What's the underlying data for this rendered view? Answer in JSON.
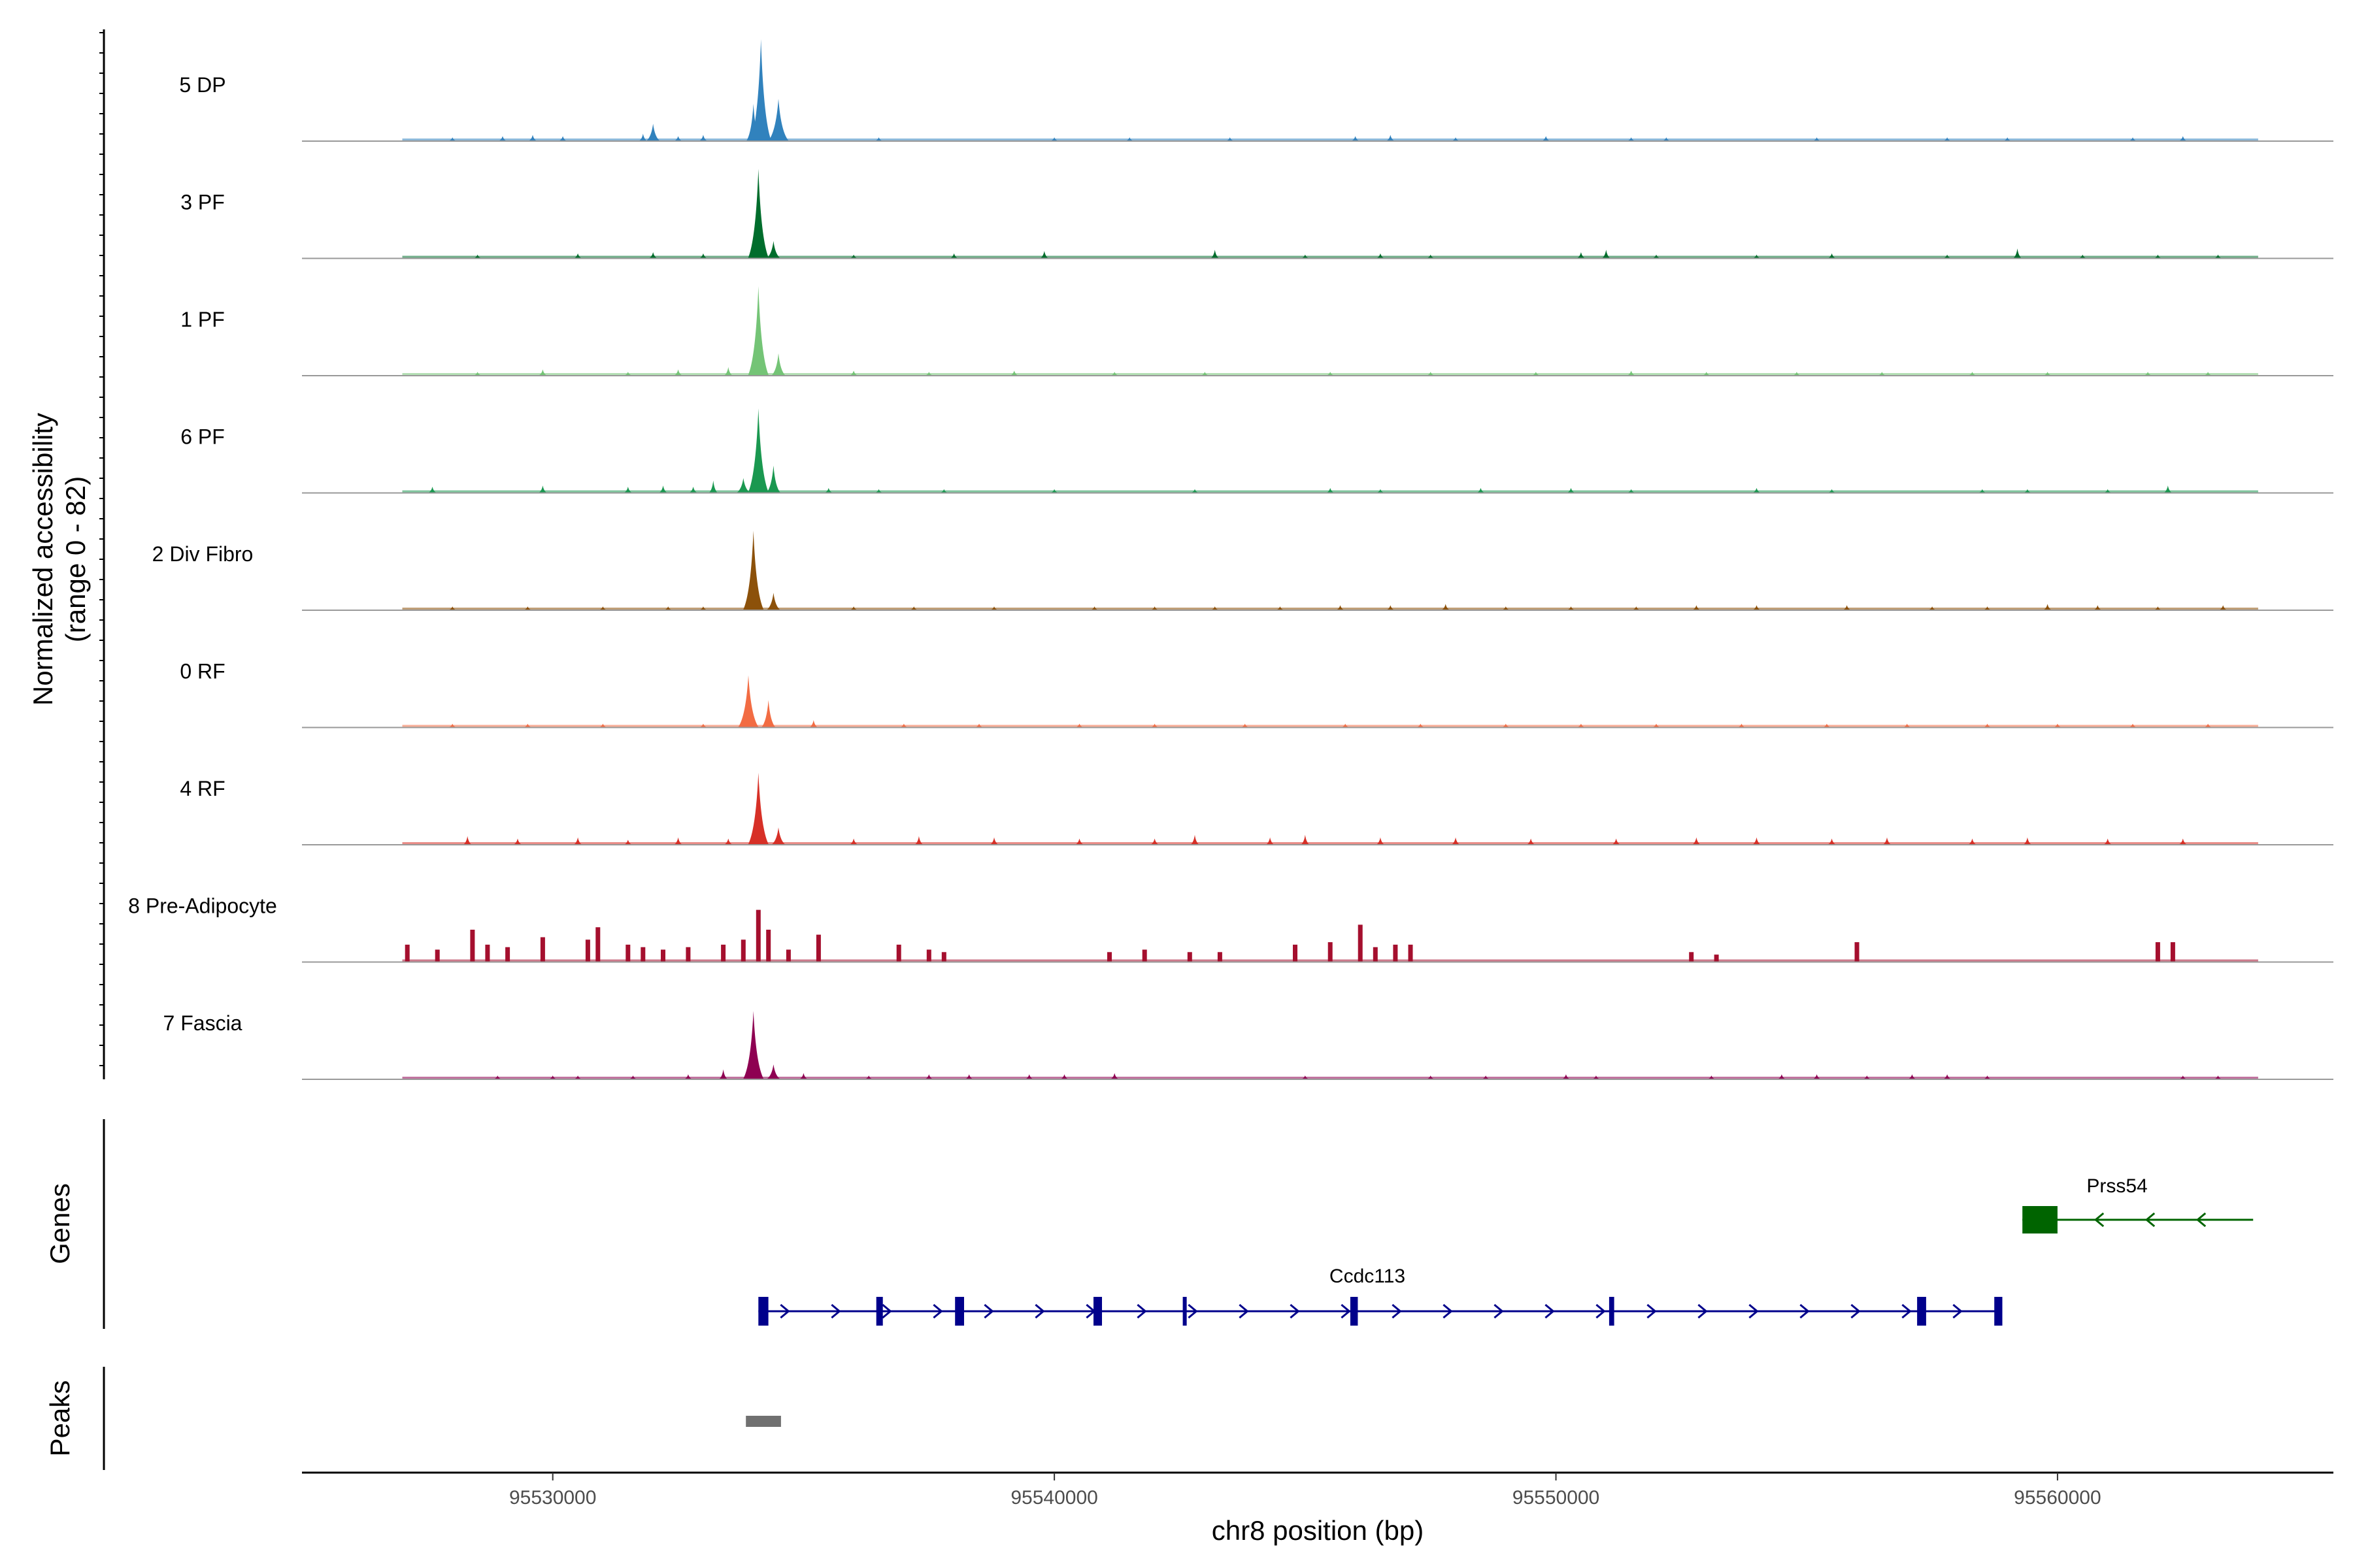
{
  "chart_data": {
    "type": "area",
    "title": "",
    "region": {
      "chrom": "chr8",
      "start": 95525000,
      "end": 95565500
    },
    "ylabel": "Normalized accessibility",
    "ylabel_range": "(range 0 - 82)",
    "ylim": [
      0,
      82
    ],
    "xlabel": "chr8 position (bp)",
    "x_ticks": [
      95530000,
      95540000,
      95550000,
      95560000
    ],
    "x_tick_labels": [
      "95530000",
      "95540000",
      "95550000",
      "95560000"
    ],
    "series": [
      {
        "name": "5 DP",
        "color": "#3182bd",
        "style": "smooth",
        "peaks": [
          [
            95528000,
            3
          ],
          [
            95529000,
            4
          ],
          [
            95529600,
            5
          ],
          [
            95530200,
            4
          ],
          [
            95531800,
            6
          ],
          [
            95532000,
            14
          ],
          [
            95532500,
            4
          ],
          [
            95533000,
            5
          ],
          [
            95534000,
            30
          ],
          [
            95534150,
            82
          ],
          [
            95534500,
            34
          ],
          [
            95536500,
            3
          ],
          [
            95540000,
            3
          ],
          [
            95541500,
            3
          ],
          [
            95543500,
            3
          ],
          [
            95546000,
            4
          ],
          [
            95546700,
            5
          ],
          [
            95548000,
            3
          ],
          [
            95549800,
            4
          ],
          [
            95551500,
            3
          ],
          [
            95552200,
            3
          ],
          [
            95555200,
            3
          ],
          [
            95557800,
            3
          ],
          [
            95559000,
            3
          ],
          [
            95561500,
            3
          ],
          [
            95562500,
            4
          ]
        ]
      },
      {
        "name": "3 PF",
        "color": "#006d2c",
        "style": "smooth",
        "peaks": [
          [
            95528500,
            3
          ],
          [
            95530500,
            4
          ],
          [
            95532000,
            5
          ],
          [
            95533000,
            4
          ],
          [
            95534100,
            72
          ],
          [
            95534400,
            14
          ],
          [
            95536000,
            3
          ],
          [
            95538000,
            4
          ],
          [
            95539800,
            6
          ],
          [
            95543200,
            7
          ],
          [
            95545000,
            3
          ],
          [
            95546500,
            4
          ],
          [
            95547500,
            3
          ],
          [
            95550500,
            5
          ],
          [
            95551000,
            7
          ],
          [
            95552000,
            3
          ],
          [
            95554000,
            3
          ],
          [
            95555500,
            4
          ],
          [
            95557800,
            3
          ],
          [
            95559200,
            8
          ],
          [
            95560500,
            3
          ],
          [
            95562000,
            3
          ],
          [
            95563200,
            3
          ]
        ]
      },
      {
        "name": "1 PF",
        "color": "#74c476",
        "style": "smooth",
        "peaks": [
          [
            95528500,
            3
          ],
          [
            95529800,
            5
          ],
          [
            95531500,
            3
          ],
          [
            95532500,
            5
          ],
          [
            95533500,
            7
          ],
          [
            95534100,
            72
          ],
          [
            95534500,
            18
          ],
          [
            95536000,
            4
          ],
          [
            95537500,
            3
          ],
          [
            95539200,
            4
          ],
          [
            95541200,
            3
          ],
          [
            95543000,
            3
          ],
          [
            95545500,
            3
          ],
          [
            95547500,
            3
          ],
          [
            95549600,
            3
          ],
          [
            95551500,
            4
          ],
          [
            95553000,
            3
          ],
          [
            95554800,
            3
          ],
          [
            95556500,
            3
          ],
          [
            95558300,
            3
          ],
          [
            95559800,
            3
          ],
          [
            95561800,
            3
          ],
          [
            95563000,
            3
          ]
        ]
      },
      {
        "name": "6 PF",
        "color": "#1a9850",
        "style": "smooth",
        "peaks": [
          [
            95527600,
            5
          ],
          [
            95529800,
            6
          ],
          [
            95531500,
            5
          ],
          [
            95532200,
            6
          ],
          [
            95532800,
            5
          ],
          [
            95533200,
            10
          ],
          [
            95533800,
            12
          ],
          [
            95534100,
            68
          ],
          [
            95534400,
            22
          ],
          [
            95535500,
            4
          ],
          [
            95536500,
            3
          ],
          [
            95537800,
            3
          ],
          [
            95540000,
            3
          ],
          [
            95542800,
            3
          ],
          [
            95545500,
            4
          ],
          [
            95546500,
            3
          ],
          [
            95548500,
            4
          ],
          [
            95550300,
            4
          ],
          [
            95551500,
            3
          ],
          [
            95554000,
            4
          ],
          [
            95555500,
            3
          ],
          [
            95558500,
            3
          ],
          [
            95559400,
            3
          ],
          [
            95561000,
            3
          ],
          [
            95562200,
            6
          ]
        ]
      },
      {
        "name": "2 Div Fibro",
        "color": "#8c510a",
        "style": "smooth",
        "peaks": [
          [
            95528000,
            3
          ],
          [
            95529500,
            3
          ],
          [
            95531000,
            3
          ],
          [
            95532300,
            3
          ],
          [
            95533000,
            3
          ],
          [
            95534000,
            64
          ],
          [
            95534400,
            14
          ],
          [
            95536000,
            3
          ],
          [
            95537200,
            3
          ],
          [
            95538800,
            3
          ],
          [
            95540800,
            3
          ],
          [
            95542000,
            3
          ],
          [
            95543200,
            3
          ],
          [
            95544500,
            3
          ],
          [
            95545700,
            4
          ],
          [
            95546700,
            4
          ],
          [
            95547800,
            5
          ],
          [
            95549000,
            3
          ],
          [
            95550300,
            3
          ],
          [
            95551600,
            3
          ],
          [
            95552800,
            4
          ],
          [
            95554000,
            4
          ],
          [
            95555800,
            4
          ],
          [
            95557500,
            3
          ],
          [
            95558600,
            3
          ],
          [
            95559800,
            5
          ],
          [
            95560800,
            4
          ],
          [
            95562000,
            3
          ],
          [
            95563300,
            4
          ]
        ]
      },
      {
        "name": "0 RF",
        "color": "#f26c43",
        "style": "smooth",
        "peaks": [
          [
            95528000,
            3
          ],
          [
            95529500,
            3
          ],
          [
            95531000,
            3
          ],
          [
            95533000,
            3
          ],
          [
            95533900,
            42
          ],
          [
            95534300,
            22
          ],
          [
            95535200,
            6
          ],
          [
            95537000,
            3
          ],
          [
            95538500,
            3
          ],
          [
            95540500,
            3
          ],
          [
            95542000,
            3
          ],
          [
            95543800,
            3
          ],
          [
            95545800,
            3
          ],
          [
            95547300,
            3
          ],
          [
            95549000,
            3
          ],
          [
            95550500,
            3
          ],
          [
            95552000,
            3
          ],
          [
            95553700,
            3
          ],
          [
            95555400,
            3
          ],
          [
            95557000,
            3
          ],
          [
            95558600,
            3
          ],
          [
            95560000,
            3
          ],
          [
            95561500,
            3
          ],
          [
            95563000,
            3
          ]
        ]
      },
      {
        "name": "4 RF",
        "color": "#d73027",
        "style": "smooth",
        "peaks": [
          [
            95528300,
            7
          ],
          [
            95529300,
            5
          ],
          [
            95530500,
            6
          ],
          [
            95531500,
            4
          ],
          [
            95532500,
            6
          ],
          [
            95533500,
            5
          ],
          [
            95534100,
            58
          ],
          [
            95534500,
            14
          ],
          [
            95536000,
            5
          ],
          [
            95537300,
            7
          ],
          [
            95538800,
            6
          ],
          [
            95540500,
            5
          ],
          [
            95542000,
            5
          ],
          [
            95542800,
            8
          ],
          [
            95544300,
            6
          ],
          [
            95545000,
            8
          ],
          [
            95546500,
            6
          ],
          [
            95548000,
            6
          ],
          [
            95549500,
            5
          ],
          [
            95551200,
            5
          ],
          [
            95552800,
            6
          ],
          [
            95554000,
            6
          ],
          [
            95555500,
            5
          ],
          [
            95556600,
            6
          ],
          [
            95558300,
            5
          ],
          [
            95559400,
            6
          ],
          [
            95561000,
            5
          ],
          [
            95562500,
            5
          ]
        ]
      },
      {
        "name": "8 Pre-Adipocyte",
        "color": "#a50f2e",
        "style": "block",
        "peaks": [
          [
            95527100,
            14
          ],
          [
            95527700,
            10
          ],
          [
            95528400,
            26
          ],
          [
            95528700,
            14
          ],
          [
            95529100,
            12
          ],
          [
            95529800,
            20
          ],
          [
            95530700,
            18
          ],
          [
            95530900,
            28
          ],
          [
            95531500,
            14
          ],
          [
            95531800,
            12
          ],
          [
            95532200,
            10
          ],
          [
            95532700,
            12
          ],
          [
            95533400,
            14
          ],
          [
            95533800,
            18
          ],
          [
            95534100,
            42
          ],
          [
            95534300,
            26
          ],
          [
            95534700,
            10
          ],
          [
            95535300,
            22
          ],
          [
            95536900,
            14
          ],
          [
            95537500,
            10
          ],
          [
            95537800,
            8
          ],
          [
            95541100,
            8
          ],
          [
            95541800,
            10
          ],
          [
            95542700,
            8
          ],
          [
            95543300,
            8
          ],
          [
            95544800,
            14
          ],
          [
            95545500,
            16
          ],
          [
            95546100,
            30
          ],
          [
            95546400,
            12
          ],
          [
            95546800,
            14
          ],
          [
            95547100,
            14
          ],
          [
            95552700,
            8
          ],
          [
            95553200,
            6
          ],
          [
            95556000,
            16
          ],
          [
            95562000,
            16
          ],
          [
            95562300,
            16
          ]
        ]
      },
      {
        "name": "7 Fascia",
        "color": "#8e0152",
        "style": "smooth",
        "peaks": [
          [
            95528900,
            3
          ],
          [
            95530000,
            3
          ],
          [
            95530500,
            3
          ],
          [
            95531600,
            3
          ],
          [
            95532700,
            4
          ],
          [
            95533400,
            8
          ],
          [
            95534000,
            55
          ],
          [
            95534400,
            12
          ],
          [
            95535000,
            5
          ],
          [
            95536300,
            3
          ],
          [
            95537500,
            4
          ],
          [
            95538300,
            4
          ],
          [
            95539500,
            4
          ],
          [
            95540200,
            4
          ],
          [
            95541200,
            5
          ],
          [
            95545000,
            3
          ],
          [
            95547500,
            3
          ],
          [
            95548600,
            3
          ],
          [
            95550200,
            4
          ],
          [
            95550800,
            3
          ],
          [
            95553100,
            3
          ],
          [
            95554500,
            4
          ],
          [
            95555200,
            4
          ],
          [
            95556200,
            3
          ],
          [
            95557100,
            4
          ],
          [
            95557800,
            4
          ],
          [
            95558600,
            3
          ],
          [
            95562500,
            3
          ],
          [
            95563200,
            3
          ]
        ]
      }
    ],
    "genes_label": "Genes",
    "genes": [
      {
        "name": "Prss54",
        "strand": "-",
        "color": "#006400",
        "start": 95559300,
        "end": 95563900,
        "exons": [
          [
            95559300,
            95560000
          ]
        ]
      },
      {
        "name": "Ccdc113",
        "strand": "+",
        "color": "#00008b",
        "start": 95534100,
        "end": 95558900,
        "exons": [
          [
            95534100,
            95534300
          ],
          [
            95536450,
            95536580
          ],
          [
            95538020,
            95538200
          ],
          [
            95540780,
            95540950
          ],
          [
            95542560,
            95542600
          ],
          [
            95545900,
            95546050
          ],
          [
            95551060,
            95551160
          ],
          [
            95557200,
            95557380
          ],
          [
            95558740,
            95558900
          ]
        ]
      }
    ],
    "peaks_label": "Peaks",
    "peaks": [
      {
        "start": 95533850,
        "end": 95534550,
        "color": "#707070"
      }
    ]
  }
}
